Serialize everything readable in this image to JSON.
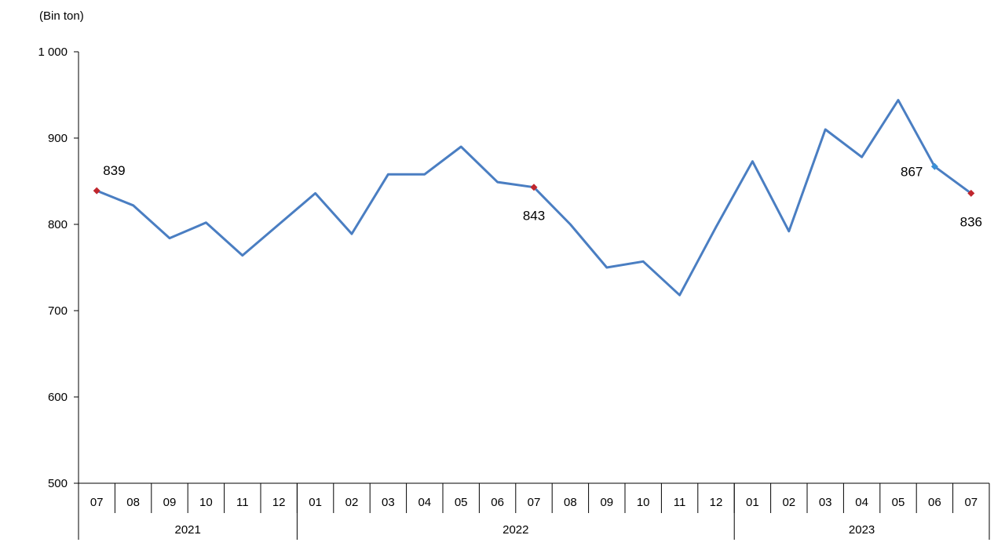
{
  "chart_data": {
    "type": "line",
    "unit_label": "(Bin  ton)",
    "title": "",
    "xlabel": "",
    "ylabel": "",
    "ylim": [
      500,
      1000
    ],
    "yticks": [
      "500",
      "600",
      "700",
      "800",
      "900",
      "1 000"
    ],
    "ytick_values": [
      500,
      600,
      700,
      800,
      900,
      1000
    ],
    "grid": false,
    "legend": "none",
    "line_color": "#4a7ec2",
    "marker_red": "#c0262d",
    "marker_blue": "#3a8fd6",
    "categories": [
      "07",
      "08",
      "09",
      "10",
      "11",
      "12",
      "01",
      "02",
      "03",
      "04",
      "05",
      "06",
      "07",
      "08",
      "09",
      "10",
      "11",
      "12",
      "01",
      "02",
      "03",
      "04",
      "05",
      "06",
      "07"
    ],
    "years": [
      {
        "label": "2021",
        "count": 6
      },
      {
        "label": "2022",
        "count": 12
      },
      {
        "label": "2023",
        "count": 7
      }
    ],
    "series": [
      {
        "values": [
          839,
          822,
          784,
          802,
          764,
          800,
          836,
          789,
          858,
          858,
          890,
          849,
          843,
          800,
          750,
          757,
          718,
          797,
          873,
          792,
          910,
          878,
          944,
          867,
          836
        ]
      }
    ],
    "highlights": [
      {
        "index": 0,
        "label": "839",
        "color": "red",
        "position": "above-right"
      },
      {
        "index": 12,
        "label": "843",
        "color": "red",
        "position": "below"
      },
      {
        "index": 23,
        "label": "867",
        "color": "blue",
        "position": "left"
      },
      {
        "index": 24,
        "label": "836",
        "color": "red",
        "position": "below"
      }
    ]
  }
}
